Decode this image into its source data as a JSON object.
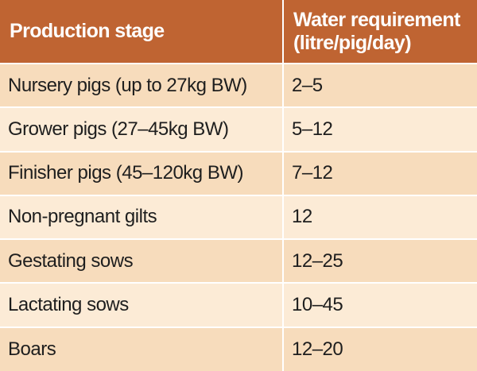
{
  "table": {
    "headers": [
      "Production stage",
      "Water requirement\n(litre/pig/day)"
    ],
    "rows": [
      [
        "Nursery pigs (up to 27kg BW)",
        "2–5"
      ],
      [
        "Grower pigs (27–45kg BW)",
        "5–12"
      ],
      [
        "Finisher pigs (45–120kg BW)",
        "7–12"
      ],
      [
        "Non-pregnant gilts",
        "12"
      ],
      [
        "Gestating sows",
        "12–25"
      ],
      [
        "Lactating sows",
        "10–45"
      ],
      [
        "Boars",
        "12–20"
      ]
    ]
  },
  "colors": {
    "header_bg": "#bf6432",
    "header_text": "#ffffff",
    "row_odd_bg": "#f7dcbc",
    "row_even_bg": "#fcebd6"
  }
}
